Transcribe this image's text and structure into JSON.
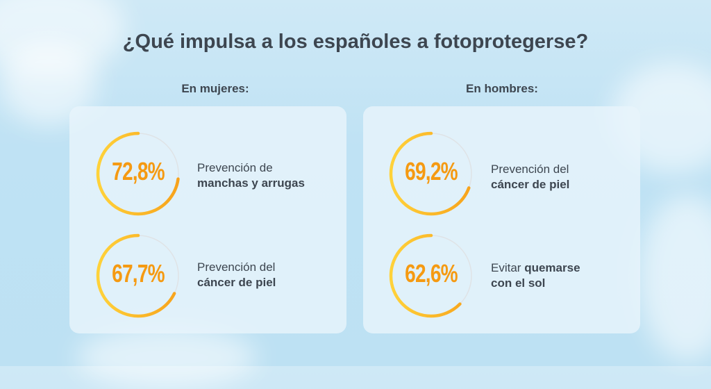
{
  "title": "¿Qué impulsa a los españoles a fotoprotegerse?",
  "colors": {
    "ring_orange": "#f7a21b",
    "ring_yellow": "#ffd23a",
    "track": "#dfe3e6",
    "text": "#3d4650",
    "accent": "#f59a12"
  },
  "chart_data": {
    "type": "donut-stats",
    "title": "¿Qué impulsa a los españoles a fotoprotegerse?",
    "groups": [
      {
        "label": "En mujeres:",
        "items": [
          {
            "value": 72.8,
            "value_label": "72,8%",
            "text_regular": "Prevención de",
            "text_bold": "manchas y arrugas"
          },
          {
            "value": 67.7,
            "value_label": "67,7%",
            "text_regular": "Prevención del",
            "text_bold": "cáncer de piel"
          }
        ]
      },
      {
        "label": "En hombres:",
        "items": [
          {
            "value": 69.2,
            "value_label": "69,2%",
            "text_regular": "Prevención del",
            "text_bold": "cáncer de piel"
          },
          {
            "value": 62.6,
            "value_label": "62,6%",
            "text_regular": "Evitar",
            "text_bold": "quemarse",
            "text_bold2": "con el sol"
          }
        ]
      }
    ]
  }
}
